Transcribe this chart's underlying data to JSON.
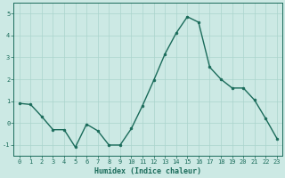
{
  "x": [
    0,
    1,
    2,
    3,
    4,
    5,
    6,
    7,
    8,
    9,
    10,
    11,
    12,
    13,
    14,
    15,
    16,
    17,
    18,
    19,
    20,
    21,
    22,
    23
  ],
  "y": [
    0.9,
    0.85,
    0.3,
    -0.3,
    -0.3,
    -1.1,
    -0.05,
    -0.35,
    -1.0,
    -1.0,
    -0.25,
    0.8,
    1.95,
    3.15,
    4.1,
    4.85,
    4.6,
    2.55,
    2.0,
    1.6,
    1.6,
    1.05,
    0.2,
    -0.7
  ],
  "line_color": "#1a6b5a",
  "marker": "o",
  "markersize": 2.0,
  "linewidth": 1.0,
  "bg_color": "#cce9e4",
  "grid_color": "#aad4cd",
  "xlabel": "Humidex (Indice chaleur)",
  "ylim": [
    -1.5,
    5.5
  ],
  "xlim": [
    -0.5,
    23.5
  ],
  "yticks": [
    -1,
    0,
    1,
    2,
    3,
    4,
    5
  ],
  "xticks": [
    0,
    1,
    2,
    3,
    4,
    5,
    6,
    7,
    8,
    9,
    10,
    11,
    12,
    13,
    14,
    15,
    16,
    17,
    18,
    19,
    20,
    21,
    22,
    23
  ],
  "tick_color": "#1a6b5a",
  "label_color": "#1a6b5a",
  "spine_color": "#1a6b5a",
  "xlabel_fontsize": 6.0,
  "tick_fontsize": 5.0
}
